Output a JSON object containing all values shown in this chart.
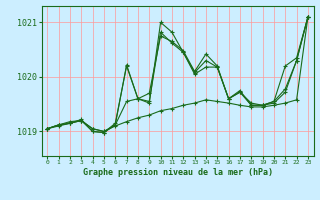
{
  "title": "Graphe pression niveau de la mer (hPa)",
  "bg_color": "#cceeff",
  "grid_color": "#ff9999",
  "line_color": "#1a6b1a",
  "xlim": [
    -0.5,
    23.5
  ],
  "ylim": [
    1018.55,
    1021.3
  ],
  "yticks": [
    1019,
    1020,
    1021
  ],
  "xtick_labels": [
    "0",
    "1",
    "2",
    "3",
    "4",
    "5",
    "6",
    "7",
    "8",
    "9",
    "10",
    "11",
    "12",
    "13",
    "14",
    "15",
    "16",
    "17",
    "18",
    "19",
    "20",
    "21",
    "22",
    "23"
  ],
  "series": [
    [
      1019.05,
      1019.1,
      1019.15,
      1019.2,
      1019.05,
      1019.0,
      1019.1,
      1019.18,
      1019.25,
      1019.3,
      1019.38,
      1019.42,
      1019.48,
      1019.52,
      1019.58,
      1019.55,
      1019.52,
      1019.48,
      1019.45,
      1019.45,
      1019.48,
      1019.52,
      1019.58,
      1021.1
    ],
    [
      1019.05,
      1019.12,
      1019.15,
      1019.2,
      1019.05,
      1019.0,
      1019.12,
      1019.55,
      1019.6,
      1019.7,
      1020.75,
      1020.65,
      1020.48,
      1020.1,
      1020.42,
      1020.2,
      1019.6,
      1019.72,
      1019.52,
      1019.48,
      1019.55,
      1019.78,
      1020.3,
      1021.1
    ],
    [
      1019.05,
      1019.12,
      1019.15,
      1019.22,
      1019.0,
      1018.98,
      1019.15,
      1020.2,
      1019.6,
      1019.55,
      1020.82,
      1020.62,
      1020.45,
      1020.08,
      1020.3,
      1020.18,
      1019.6,
      1019.72,
      1019.48,
      1019.48,
      1019.52,
      1019.72,
      1020.3,
      1021.1
    ],
    [
      1019.05,
      1019.12,
      1019.18,
      1019.2,
      1019.0,
      1018.98,
      1019.12,
      1020.22,
      1019.6,
      1019.52,
      1021.0,
      1020.82,
      1020.45,
      1020.05,
      1020.18,
      1020.18,
      1019.6,
      1019.75,
      1019.48,
      1019.48,
      1019.55,
      1020.2,
      1020.35,
      1021.1
    ]
  ]
}
